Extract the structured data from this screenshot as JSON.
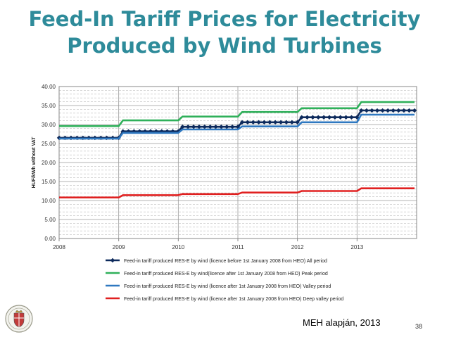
{
  "slide": {
    "title_line1": "Feed-In Tariff Prices for Electricity",
    "title_line2": "Produced by Wind Turbines",
    "source": "MEH alapján, 2013",
    "page_number": "38"
  },
  "colors": {
    "title": "#2e8b9a",
    "navy": "#0d2a5c",
    "green": "#2fb05a",
    "blue": "#2f78c0",
    "red": "#e02020"
  },
  "chart_data": {
    "type": "line",
    "title": "",
    "xlabel": "",
    "ylabel": "HUF/kWh without VAT",
    "xlim": [
      2008,
      2014
    ],
    "ylim": [
      0,
      40
    ],
    "x_ticks": [
      "2008",
      "2009",
      "2010",
      "2011",
      "2012",
      "2013"
    ],
    "y_ticks": [
      "0.00",
      "5.00",
      "10.00",
      "15.00",
      "20.00",
      "25.00",
      "30.00",
      "35.00",
      "40.00"
    ],
    "grid": true,
    "legend_position": "bottom",
    "step": true,
    "x": [
      2008,
      2009,
      2010,
      2011,
      2012,
      2013
    ],
    "series": [
      {
        "name": "Feed-in tariff produced RES-E by wind (licence before 1st January 2008 from HEO) All period",
        "color": "#0d2a5c",
        "marker": "diamond",
        "values": [
          26.5,
          28.2,
          29.4,
          30.6,
          31.9,
          33.7
        ]
      },
      {
        "name": "Feed-in tariff produced RES-E by wind(licence after 1st January 2008 from HEO) Peak period",
        "color": "#2fb05a",
        "marker": "none",
        "values": [
          29.6,
          31.1,
          32.1,
          33.3,
          34.3,
          35.9
        ]
      },
      {
        "name": "Feed-in tariff produced RES-E by wind (licence after 1st January 2008 from HEO) Valley period",
        "color": "#2f78c0",
        "marker": "none",
        "values": [
          26.3,
          27.8,
          28.7,
          29.5,
          30.6,
          32.6
        ]
      },
      {
        "name": "Feed-in tariff produced RES-E by wind (licence after 1st January 2008 from HEO) Deep valley period",
        "color": "#e02020",
        "marker": "none",
        "values": [
          10.8,
          11.4,
          11.7,
          12.1,
          12.5,
          13.2
        ]
      }
    ]
  }
}
